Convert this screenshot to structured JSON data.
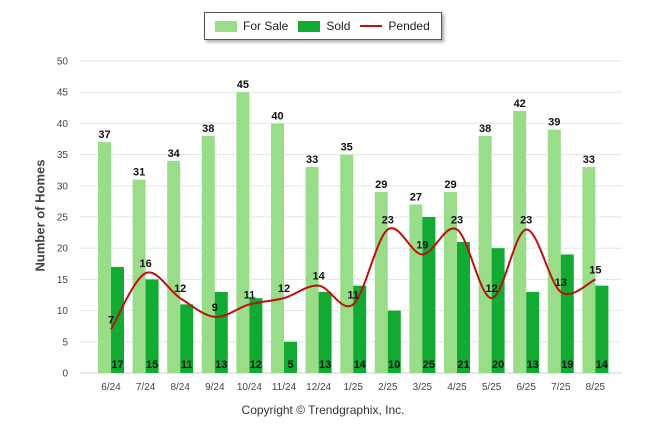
{
  "chart_data": {
    "type": "bar",
    "categories": [
      "6/24",
      "7/24",
      "8/24",
      "9/24",
      "10/24",
      "11/24",
      "12/24",
      "1/25",
      "2/25",
      "3/25",
      "4/25",
      "5/25",
      "6/25",
      "7/25",
      "8/25"
    ],
    "series": [
      {
        "name": "For Sale",
        "type": "bar",
        "color": "#99dd88",
        "values": [
          37,
          31,
          34,
          38,
          45,
          40,
          33,
          35,
          29,
          27,
          29,
          38,
          42,
          39,
          33
        ]
      },
      {
        "name": "Sold",
        "type": "bar",
        "color": "#11aa33",
        "values": [
          17,
          15,
          11,
          13,
          12,
          5,
          13,
          14,
          10,
          25,
          21,
          20,
          13,
          19,
          14
        ]
      },
      {
        "name": "Pended",
        "type": "line",
        "color": "#bb1111",
        "values": [
          7,
          16,
          12,
          9,
          11,
          12,
          14,
          11,
          23,
          19,
          23,
          12,
          23,
          13,
          15
        ]
      }
    ],
    "ylabel": "Number of Homes",
    "xlabel": "",
    "ylim": [
      0,
      50
    ],
    "yticks": [
      0,
      5,
      10,
      15,
      20,
      25,
      30,
      35,
      40,
      45,
      50
    ],
    "grid": true,
    "legend_position": "top-center"
  },
  "legend": {
    "for_sale": "For Sale",
    "sold": "Sold",
    "pended": "Pended"
  },
  "copyright": "Copyright © Trendgraphix, Inc."
}
